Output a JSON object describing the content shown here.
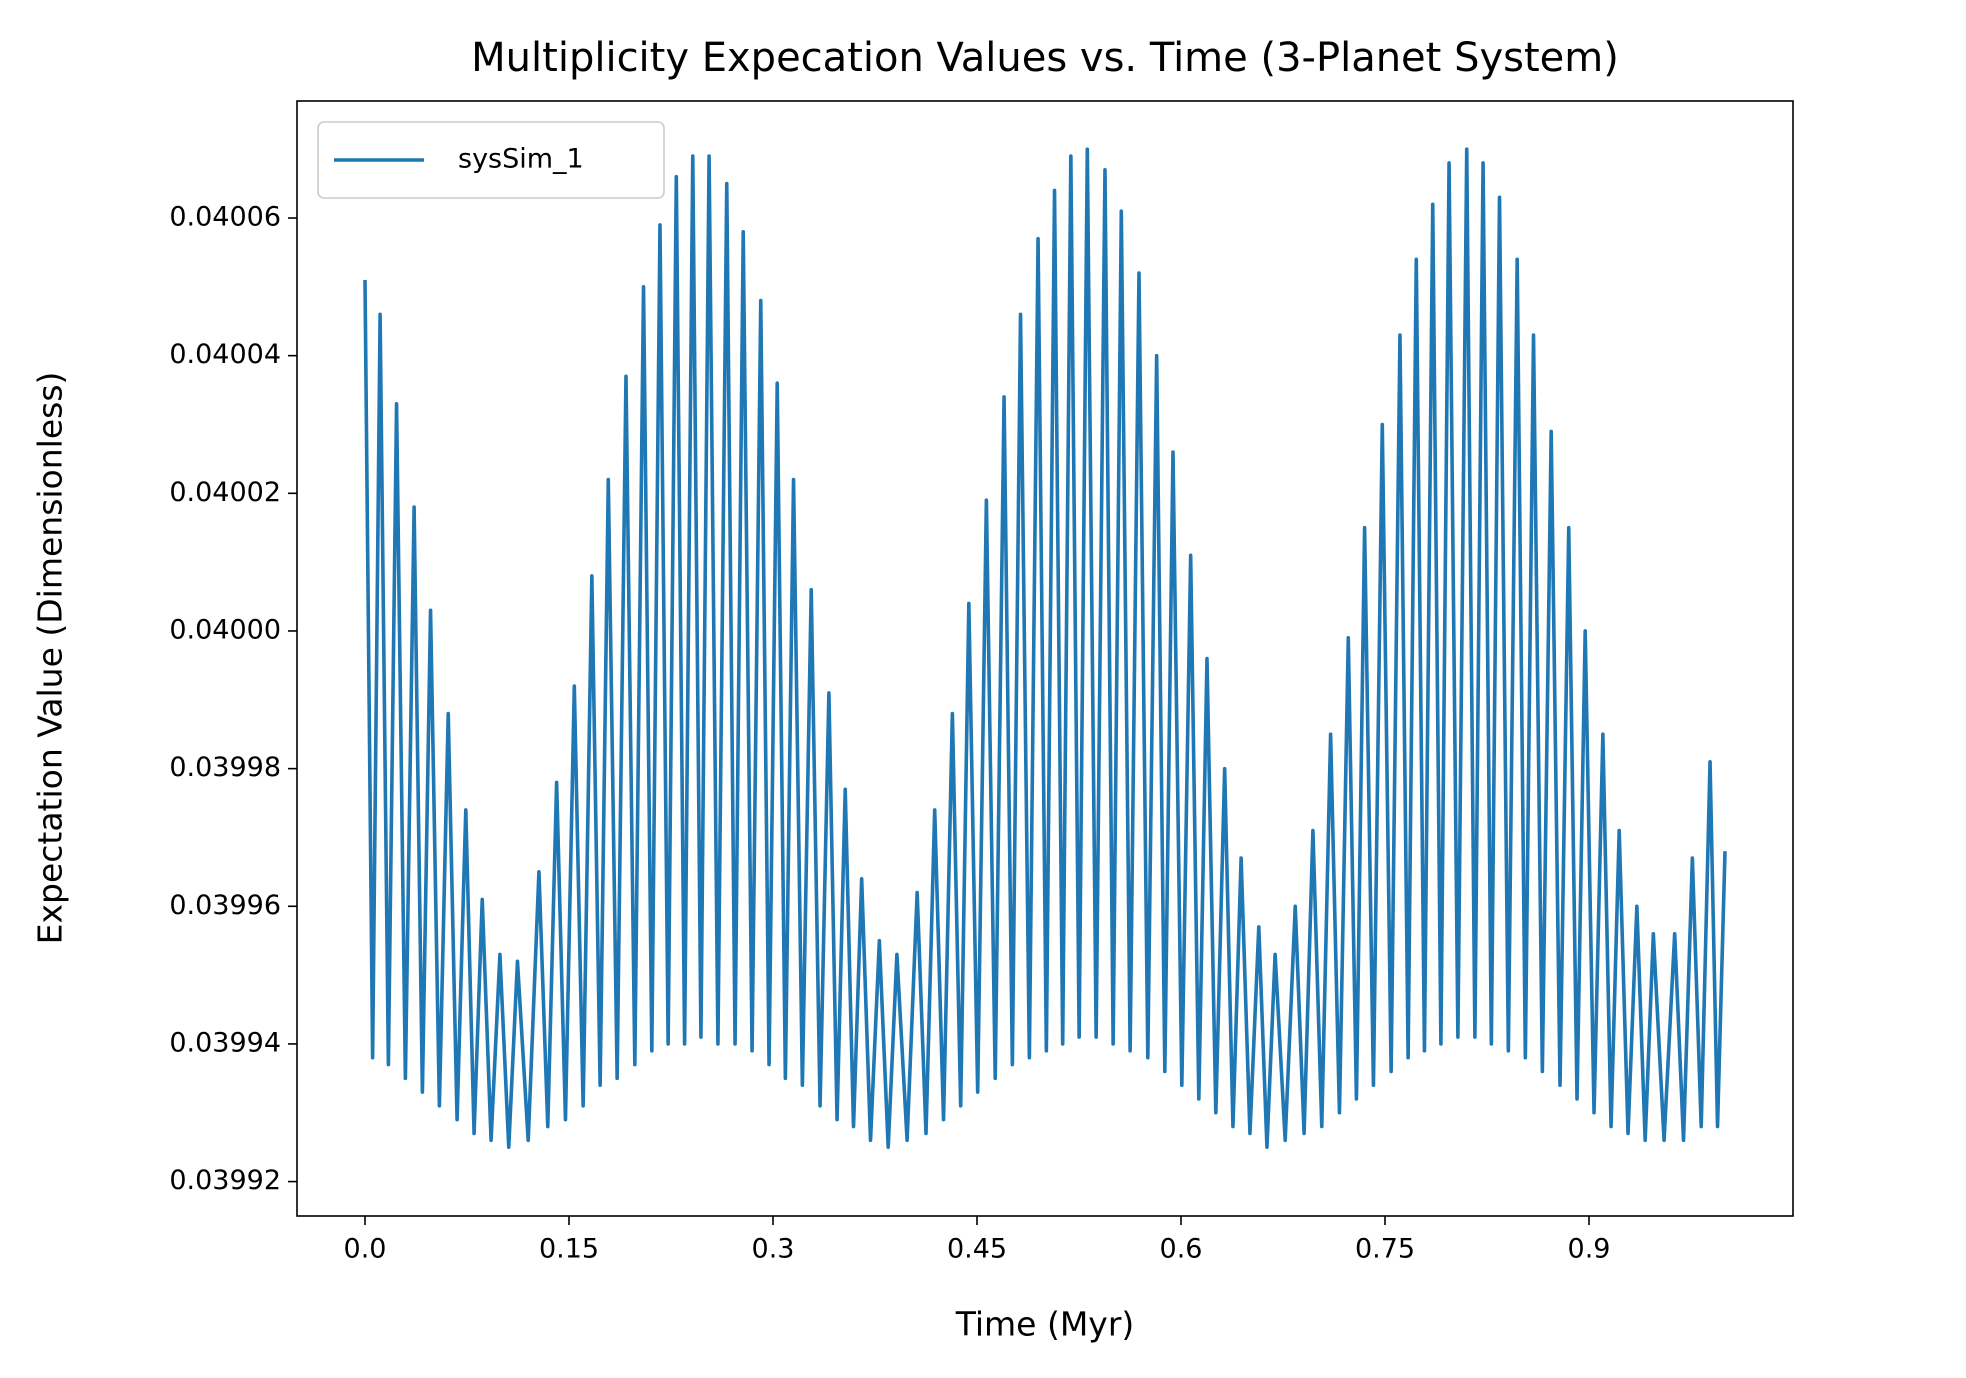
{
  "chart_data": {
    "type": "line",
    "title": "Multiplicity Expecation Values vs. Time (3-Planet System)",
    "xlabel": "Time (Myr)",
    "ylabel": "Expectation Value (Dimensionless)",
    "xlim": [
      -0.05,
      1.05
    ],
    "ylim": [
      0.039915,
      0.040077
    ],
    "xticks": [
      {
        "value": 0,
        "label": "0.0"
      },
      0.15,
      0.3,
      0.45,
      0.6,
      0.75,
      0.9
    ],
    "yticks": [
      0.03992,
      0.03994,
      0.03996,
      0.03998,
      {
        "value": 0.04,
        "label": "0.04000"
      },
      0.04002,
      0.04004,
      0.04006
    ],
    "grid": false,
    "legend": "upper left",
    "x": [
      0,
      0.0056,
      0.0111,
      0.0172,
      0.0232,
      0.0297,
      0.0361,
      0.0422,
      0.0482,
      0.0547,
      0.0612,
      0.0677,
      0.0741,
      0.0802,
      0.0862,
      0.0927,
      0.0992,
      0.1057,
      0.1121,
      0.12,
      0.1279,
      0.1344,
      0.1409,
      0.1474,
      0.1539,
      0.1604,
      0.1668,
      0.1729,
      0.1789,
      0.1854,
      0.1919,
      0.1984,
      0.2048,
      0.2109,
      0.2169,
      0.2229,
      0.2289,
      0.235,
      0.241,
      0.247,
      0.253,
      0.2595,
      0.266,
      0.2721,
      0.2781,
      0.2846,
      0.291,
      0.2971,
      0.3031,
      0.3091,
      0.3151,
      0.3216,
      0.3281,
      0.3346,
      0.3411,
      0.3471,
      0.3531,
      0.3592,
      0.3652,
      0.3717,
      0.3782,
      0.3847,
      0.3911,
      0.3986,
      0.406,
      0.4125,
      0.4189,
      0.4254,
      0.4319,
      0.438,
      0.444,
      0.4505,
      0.4569,
      0.4634,
      0.4699,
      0.476,
      0.482,
      0.4885,
      0.4949,
      0.501,
      0.507,
      0.513,
      0.519,
      0.5251,
      0.5311,
      0.5376,
      0.5441,
      0.5501,
      0.5561,
      0.5626,
      0.5691,
      0.5756,
      0.5821,
      0.5881,
      0.5941,
      0.6006,
      0.6071,
      0.6131,
      0.6191,
      0.6256,
      0.6321,
      0.6382,
      0.6442,
      0.6507,
      0.6572,
      0.6632,
      0.6692,
      0.6766,
      0.684,
      0.6905,
      0.697,
      0.7035,
      0.71,
      0.7165,
      0.723,
      0.729,
      0.735,
      0.7415,
      0.748,
      0.7545,
      0.761,
      0.767,
      0.773,
      0.779,
      0.7851,
      0.7911,
      0.7971,
      0.8036,
      0.8101,
      0.8161,
      0.8221,
      0.8282,
      0.8342,
      0.8407,
      0.8472,
      0.8532,
      0.8592,
      0.8657,
      0.8722,
      0.8787,
      0.8851,
      0.8912,
      0.8972,
      0.9037,
      0.9102,
      0.9162,
      0.9222,
      0.9287,
      0.9352,
      0.9413,
      0.9473,
      0.9552,
      0.963,
      0.9695,
      0.976,
      0.9825,
      0.989,
      0.9945,
      1.0
    ],
    "series": [
      {
        "name": "sysSim_1",
        "color": "#1f77b4",
        "values": [
          0.040051,
          0.039938,
          0.040046,
          0.039937,
          0.040033,
          0.039935,
          0.040018,
          0.039933,
          0.040003,
          0.039931,
          0.039988,
          0.039929,
          0.039974,
          0.039927,
          0.039961,
          0.039926,
          0.039953,
          0.039925,
          0.039952,
          0.039926,
          0.039965,
          0.039928,
          0.039978,
          0.039929,
          0.039992,
          0.039931,
          0.040008,
          0.039934,
          0.040022,
          0.039935,
          0.040037,
          0.039937,
          0.04005,
          0.039939,
          0.040059,
          0.03994,
          0.040066,
          0.03994,
          0.040069,
          0.039941,
          0.040069,
          0.03994,
          0.040065,
          0.03994,
          0.040058,
          0.039939,
          0.040048,
          0.039937,
          0.040036,
          0.039935,
          0.040022,
          0.039934,
          0.040006,
          0.039931,
          0.039991,
          0.039929,
          0.039977,
          0.039928,
          0.039964,
          0.039926,
          0.039955,
          0.039925,
          0.039953,
          0.039926,
          0.039962,
          0.039927,
          0.039974,
          0.039929,
          0.039988,
          0.039931,
          0.040004,
          0.039933,
          0.040019,
          0.039935,
          0.040034,
          0.039937,
          0.040046,
          0.039938,
          0.040057,
          0.039939,
          0.040064,
          0.03994,
          0.040069,
          0.039941,
          0.04007,
          0.039941,
          0.040067,
          0.03994,
          0.040061,
          0.039939,
          0.040052,
          0.039938,
          0.04004,
          0.039936,
          0.040026,
          0.039934,
          0.040011,
          0.039932,
          0.039996,
          0.03993,
          0.03998,
          0.039928,
          0.039967,
          0.039927,
          0.039957,
          0.039925,
          0.039953,
          0.039926,
          0.03996,
          0.039927,
          0.039971,
          0.039928,
          0.039985,
          0.03993,
          0.039999,
          0.039932,
          0.040015,
          0.039934,
          0.04003,
          0.039936,
          0.040043,
          0.039938,
          0.040054,
          0.039939,
          0.040062,
          0.03994,
          0.040068,
          0.039941,
          0.04007,
          0.039941,
          0.040068,
          0.03994,
          0.040063,
          0.039939,
          0.040054,
          0.039938,
          0.040043,
          0.039936,
          0.040029,
          0.039934,
          0.040015,
          0.039932,
          0.04,
          0.03993,
          0.039985,
          0.039928,
          0.039971,
          0.039927,
          0.03996,
          0.039926,
          0.039956,
          0.039926,
          0.039956,
          0.039926,
          0.039967,
          0.039928,
          0.039981,
          0.039928,
          0.039968
        ]
      }
    ]
  }
}
